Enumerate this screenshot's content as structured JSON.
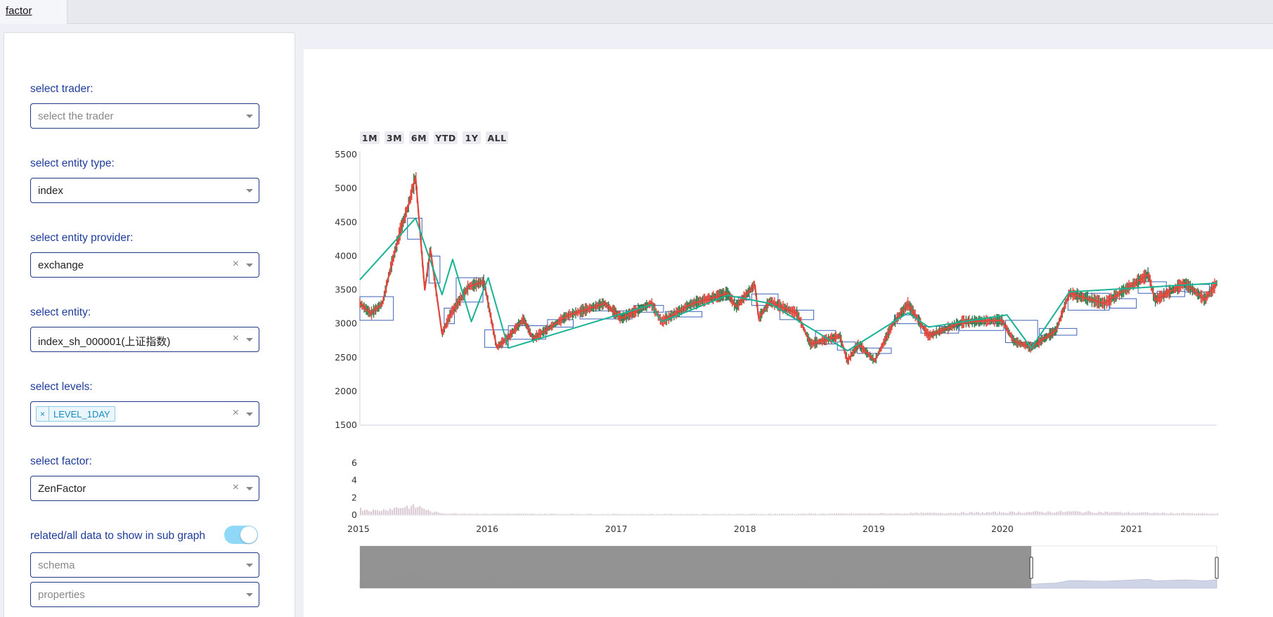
{
  "tabs": [
    {
      "label": "factor"
    }
  ],
  "sidebar": {
    "trader": {
      "label": "select trader:",
      "placeholder": "select the trader"
    },
    "entity_type": {
      "label": "select entity type:",
      "value": "index"
    },
    "entity_provider": {
      "label": "select entity provider:",
      "value": "exchange"
    },
    "entity": {
      "label": "select entity:",
      "value": "index_sh_000001(上证指数)"
    },
    "levels": {
      "label": "select levels:",
      "tag": "LEVEL_1DAY",
      "tag_remove": "×"
    },
    "factor": {
      "label": "select factor:",
      "value": "ZenFactor"
    },
    "toggle": {
      "label": "related/all data to show in sub graph",
      "on": true
    },
    "schema": {
      "placeholder": "schema"
    },
    "properties": {
      "placeholder": "properties"
    },
    "clear_symbol": "×"
  },
  "chart": {
    "range_buttons": [
      "1M",
      "3M",
      "6M",
      "YTD",
      "1Y",
      "ALL"
    ],
    "colors": {
      "up": "#e0463c",
      "down": "#2f7a4a",
      "zen": "#19b394",
      "box": "#3f63b8",
      "volume": "#d9c7d1"
    }
  },
  "chart_data": {
    "type": "line",
    "title": "",
    "price": {
      "ylim": [
        1500,
        5500
      ],
      "y_ticks": [
        "5500",
        "5000",
        "4500",
        "4000",
        "3500",
        "3000",
        "2500",
        "2000",
        "1500"
      ],
      "x_ticks": [
        "2015",
        "2016",
        "2017",
        "2018",
        "2019",
        "2020",
        "2021"
      ],
      "series": [
        {
          "values": [
            [
              "2015-01-05",
              3300
            ],
            [
              "2015-02-05",
              3150
            ],
            [
              "2015-03-10",
              3300
            ],
            [
              "2015-04-01",
              3800
            ],
            [
              "2015-05-01",
              4400
            ],
            [
              "2015-05-20",
              4700
            ],
            [
              "2015-06-12",
              5170
            ],
            [
              "2015-07-08",
              3500
            ],
            [
              "2015-07-24",
              4100
            ],
            [
              "2015-08-26",
              2850
            ],
            [
              "2015-09-20",
              3150
            ],
            [
              "2015-11-10",
              3550
            ],
            [
              "2015-12-23",
              3620
            ],
            [
              "2016-01-28",
              2650
            ],
            [
              "2016-03-01",
              2800
            ],
            [
              "2016-04-13",
              3070
            ],
            [
              "2016-05-10",
              2780
            ],
            [
              "2016-08-16",
              3120
            ],
            [
              "2016-11-29",
              3300
            ],
            [
              "2017-01-16",
              3080
            ],
            [
              "2017-04-10",
              3300
            ],
            [
              "2017-05-10",
              3030
            ],
            [
              "2017-08-01",
              3290
            ],
            [
              "2017-11-13",
              3450
            ],
            [
              "2017-12-07",
              3250
            ],
            [
              "2018-01-29",
              3580
            ],
            [
              "2018-02-09",
              3080
            ],
            [
              "2018-03-12",
              3330
            ],
            [
              "2018-05-29",
              3150
            ],
            [
              "2018-07-06",
              2700
            ],
            [
              "2018-09-27",
              2820
            ],
            [
              "2018-10-19",
              2450
            ],
            [
              "2018-11-19",
              2700
            ],
            [
              "2019-01-04",
              2450
            ],
            [
              "2019-02-25",
              3000
            ],
            [
              "2019-04-08",
              3290
            ],
            [
              "2019-06-06",
              2820
            ],
            [
              "2019-09-12",
              3030
            ],
            [
              "2019-12-31",
              3050
            ],
            [
              "2020-02-03",
              2740
            ],
            [
              "2020-03-23",
              2650
            ],
            [
              "2020-06-01",
              2900
            ],
            [
              "2020-07-09",
              3450
            ],
            [
              "2020-10-16",
              3300
            ],
            [
              "2021-02-18",
              3730
            ],
            [
              "2021-03-09",
              3350
            ],
            [
              "2021-06-01",
              3600
            ],
            [
              "2021-07-28",
              3360
            ],
            [
              "2021-08-31",
              3600
            ]
          ]
        },
        {
          "name_hidden": true,
          "values": [
            [
              "2015-01-05",
              3650
            ],
            [
              "2015-06-12",
              4560
            ],
            [
              "2015-08-26",
              3430
            ],
            [
              "2015-09-25",
              3950
            ],
            [
              "2015-11-17",
              3030
            ],
            [
              "2016-01-04",
              3680
            ],
            [
              "2016-03-01",
              2640
            ],
            [
              "2017-04-10",
              3280
            ],
            [
              "2017-05-10",
              3030
            ],
            [
              "2017-11-13",
              3420
            ],
            [
              "2018-03-12",
              3300
            ],
            [
              "2018-10-19",
              2600
            ],
            [
              "2019-04-08",
              3160
            ],
            [
              "2019-06-06",
              2950
            ],
            [
              "2020-01-14",
              3130
            ],
            [
              "2020-03-23",
              2640
            ],
            [
              "2020-07-09",
              3470
            ],
            [
              "2021-08-31",
              3600
            ]
          ]
        }
      ],
      "boxes": [
        {
          "x": [
            "2015-01-05",
            "2015-04-10"
          ],
          "y": [
            3050,
            3400
          ]
        },
        {
          "x": [
            "2015-05-20",
            "2015-06-30"
          ],
          "y": [
            4250,
            4560
          ]
        },
        {
          "x": [
            "2015-07-20",
            "2015-08-20"
          ],
          "y": [
            3600,
            4000
          ]
        },
        {
          "x": [
            "2015-09-01",
            "2015-09-30"
          ],
          "y": [
            3000,
            3230
          ]
        },
        {
          "x": [
            "2015-10-05",
            "2015-12-20"
          ],
          "y": [
            3320,
            3680
          ]
        },
        {
          "x": [
            "2015-12-25",
            "2016-03-01"
          ],
          "y": [
            2650,
            2910
          ]
        },
        {
          "x": [
            "2016-03-01",
            "2016-06-15"
          ],
          "y": [
            2770,
            2970
          ]
        },
        {
          "x": [
            "2016-06-20",
            "2016-09-01"
          ],
          "y": [
            2950,
            3060
          ]
        },
        {
          "x": [
            "2016-09-20",
            "2017-02-15"
          ],
          "y": [
            3070,
            3190
          ]
        },
        {
          "x": [
            "2017-02-20",
            "2017-05-15"
          ],
          "y": [
            3170,
            3270
          ]
        },
        {
          "x": [
            "2017-05-20",
            "2017-09-01"
          ],
          "y": [
            3100,
            3180
          ]
        },
        {
          "x": [
            "2017-09-10",
            "2018-01-15"
          ],
          "y": [
            3350,
            3400
          ]
        },
        {
          "x": [
            "2018-01-20",
            "2018-04-05"
          ],
          "y": [
            3270,
            3440
          ]
        },
        {
          "x": [
            "2018-04-10",
            "2018-07-15"
          ],
          "y": [
            3060,
            3200
          ]
        },
        {
          "x": [
            "2018-07-20",
            "2018-09-15"
          ],
          "y": [
            2700,
            2900
          ]
        },
        {
          "x": [
            "2018-09-20",
            "2018-11-10"
          ],
          "y": [
            2610,
            2730
          ]
        },
        {
          "x": [
            "2018-11-15",
            "2019-02-20"
          ],
          "y": [
            2560,
            2640
          ]
        },
        {
          "x": [
            "2019-03-01",
            "2019-05-10"
          ],
          "y": [
            3000,
            3130
          ]
        },
        {
          "x": [
            "2019-05-15",
            "2019-08-30"
          ],
          "y": [
            2860,
            2960
          ]
        },
        {
          "x": [
            "2019-09-01",
            "2020-01-05"
          ],
          "y": [
            2900,
            3000
          ]
        },
        {
          "x": [
            "2020-01-10",
            "2020-04-10"
          ],
          "y": [
            2720,
            3050
          ]
        },
        {
          "x": [
            "2020-04-15",
            "2020-07-30"
          ],
          "y": [
            2830,
            2930
          ]
        },
        {
          "x": [
            "2020-07-05",
            "2020-10-30"
          ],
          "y": [
            3200,
            3450
          ]
        },
        {
          "x": [
            "2020-11-01",
            "2021-01-15"
          ],
          "y": [
            3230,
            3370
          ]
        },
        {
          "x": [
            "2021-01-20",
            "2021-04-10"
          ],
          "y": [
            3450,
            3620
          ]
        },
        {
          "x": [
            "2021-03-15",
            "2021-06-01"
          ],
          "y": [
            3400,
            3480
          ]
        },
        {
          "x": [
            "2021-06-01",
            "2021-08-10"
          ],
          "y": [
            3470,
            3580
          ]
        }
      ]
    },
    "volume": {
      "ylim": [
        0,
        6
      ],
      "y_ticks": [
        "6",
        "4",
        "2",
        "0"
      ],
      "values": [
        [
          "2015-01-05",
          0.7
        ],
        [
          "2015-02-20",
          0.5
        ],
        [
          "2015-04-10",
          0.8
        ],
        [
          "2015-05-20",
          1.0
        ],
        [
          "2015-06-30",
          0.9
        ],
        [
          "2015-07-20",
          0.4
        ],
        [
          "2015-09-01",
          0.2
        ],
        [
          "2016-01-01",
          0.15
        ],
        [
          "2017-01-01",
          0.12
        ],
        [
          "2018-01-01",
          0.12
        ],
        [
          "2019-03-01",
          0.2
        ],
        [
          "2020-07-09",
          0.4
        ],
        [
          "2021-08-31",
          0.15
        ]
      ]
    },
    "rangeslider": {
      "selected": [
        "2015-01-05",
        "2020-03-23"
      ]
    }
  }
}
